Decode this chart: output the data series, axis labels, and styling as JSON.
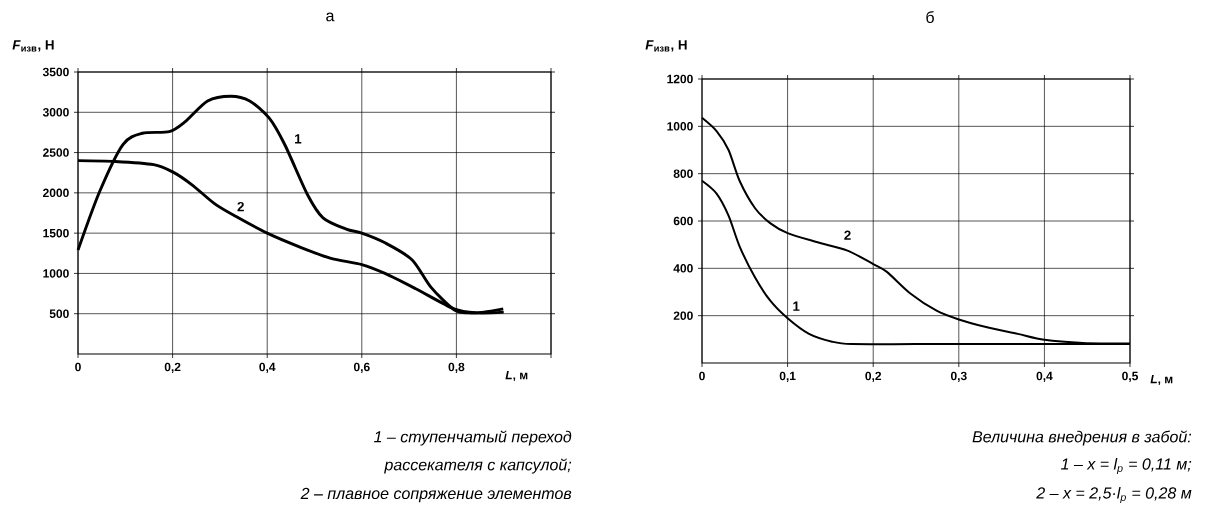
{
  "chart_data": [
    {
      "type": "line",
      "title": "а",
      "xlabel": "*L*, м",
      "ylabel": "*F*$_{изв}$, Н",
      "xlim": [
        0,
        1.0
      ],
      "ylim": [
        0,
        3500
      ],
      "xticks": [
        0,
        {
          "value": 0.2,
          "label": "0,2"
        },
        {
          "value": 0.4,
          "label": "0,4"
        },
        {
          "value": 0.6,
          "label": "0,6"
        },
        {
          "value": 0.8,
          "label": "0,8"
        },
        {
          "value": 1.0,
          "label": null
        }
      ],
      "yticks": [
        500,
        1000,
        1500,
        2000,
        2500,
        3000,
        3500
      ],
      "grid": true,
      "marker": "none",
      "series": [
        {
          "name": "1",
          "color": "#000000",
          "x": [
            0,
            0.046,
            0.095,
            0.136,
            0.193,
            0.226,
            0.274,
            0.323,
            0.363,
            0.404,
            0.437,
            0.485,
            0.518,
            0.567,
            0.6,
            0.649,
            0.706,
            0.746,
            0.795,
            0.826,
            0.858,
            0.899
          ],
          "values": [
            1290,
            2020,
            2600,
            2740,
            2760,
            2880,
            3140,
            3200,
            3140,
            2930,
            2600,
            1980,
            1690,
            1550,
            1500,
            1380,
            1170,
            830,
            550,
            510,
            520,
            560
          ]
        },
        {
          "name": "2",
          "color": "#000000",
          "x": [
            0,
            0.079,
            0.16,
            0.2,
            0.241,
            0.29,
            0.339,
            0.4,
            0.468,
            0.533,
            0.6,
            0.649,
            0.714,
            0.795,
            0.844,
            0.9
          ],
          "values": [
            2400,
            2390,
            2350,
            2260,
            2100,
            1860,
            1690,
            1500,
            1330,
            1190,
            1110,
            1000,
            810,
            560,
            510,
            520
          ]
        }
      ],
      "annotations": [
        "1 – ступенчатый переход",
        "рассекателя с капсулой;",
        "2 – плавное сопряжение элементов"
      ]
    },
    {
      "type": "line",
      "title": "б",
      "xlabel": "*L*, м",
      "ylabel": "*F*$_{изв}$, Н",
      "xlim": [
        0,
        0.5
      ],
      "ylim": [
        0,
        1200
      ],
      "xticks": [
        0,
        {
          "value": 0.1,
          "label": "0,1"
        },
        {
          "value": 0.2,
          "label": "0,2"
        },
        {
          "value": 0.3,
          "label": "0,3"
        },
        {
          "value": 0.4,
          "label": "0,4"
        },
        {
          "value": 0.5,
          "label": "0,5"
        }
      ],
      "yticks": [
        200,
        400,
        600,
        800,
        1000,
        1200
      ],
      "grid": true,
      "marker": "none",
      "series": [
        {
          "name": "1",
          "color": "#000000",
          "x": [
            0,
            0.017,
            0.031,
            0.044,
            0.062,
            0.08,
            0.1,
            0.125,
            0.152,
            0.175,
            0.25,
            0.35,
            0.5
          ],
          "values": [
            770,
            716,
            623,
            492,
            361,
            262,
            189,
            123,
            90,
            80,
            80,
            80,
            80
          ]
        },
        {
          "name": "2",
          "color": "#000000",
          "x": [
            0,
            0.017,
            0.031,
            0.044,
            0.062,
            0.08,
            0.1,
            0.134,
            0.17,
            0.2,
            0.216,
            0.243,
            0.274,
            0.3,
            0.333,
            0.369,
            0.4,
            0.445,
            0.5
          ],
          "values": [
            1036,
            980,
            900,
            769,
            654,
            590,
            549,
            511,
            475,
            418,
            385,
            295,
            221,
            184,
            151,
            123,
            98,
            85,
            82
          ]
        }
      ],
      "annotations": [
        "Величина внедрения в забой:",
        "1 – x = l$_{p}$ = 0,11 м;",
        "2 – x = 2,5·l$_{p}$ = 0,28 м"
      ]
    }
  ]
}
